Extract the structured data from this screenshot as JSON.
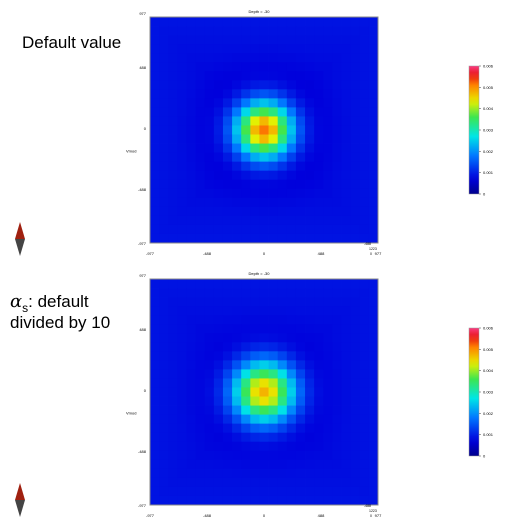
{
  "captions": {
    "top": "Default value",
    "bottom_symbol": "α",
    "bottom_subscript": "s",
    "bottom_line1_rest": ": default",
    "bottom_line2": "divided by 10"
  },
  "chart_data": [
    {
      "type": "heatmap",
      "title": "Depth = -30",
      "ylabel": "Vmod",
      "xlim": [
        -977,
        977
      ],
      "ylim": [
        -977,
        977
      ],
      "x_ticks": [
        "-977",
        "-488",
        "0",
        "488",
        "977"
      ],
      "y_ticks": [
        "977",
        "488",
        "0",
        "-488",
        "-977"
      ],
      "corner_labels": [
        "-488",
        "1223",
        "0"
      ],
      "colorbar": {
        "ticks": [
          "0.006",
          "0.005",
          "0.004",
          "0.003",
          "0.002",
          "0.001",
          "0"
        ],
        "range": [
          0,
          0.006
        ]
      },
      "field": {
        "background": 0.00082,
        "peak": 0.0053,
        "peak_x": 0,
        "peak_y": 0,
        "spread": 170
      }
    },
    {
      "type": "heatmap",
      "title": "Depth = -30",
      "ylabel": "Vmod",
      "xlim": [
        -977,
        977
      ],
      "ylim": [
        -977,
        977
      ],
      "x_ticks": [
        "-977",
        "-488",
        "0",
        "488",
        "977"
      ],
      "y_ticks": [
        "977",
        "488",
        "0",
        "-488",
        "-977"
      ],
      "corner_labels": [
        "-488",
        "1223",
        "0"
      ],
      "colorbar": {
        "ticks": [
          "0.006",
          "0.005",
          "0.004",
          "0.003",
          "0.002",
          "0.001",
          "0"
        ],
        "range": [
          0,
          0.006
        ]
      },
      "field": {
        "background": 0.00082,
        "peak": 0.0049,
        "peak_x": 0,
        "peak_y": 0,
        "spread": 185
      }
    }
  ],
  "colors": {
    "plot_border": "#888888",
    "compass_top": "#a02010",
    "compass_bottom": "#444444"
  },
  "icons": {
    "compass": "compass-arrow-icon"
  }
}
